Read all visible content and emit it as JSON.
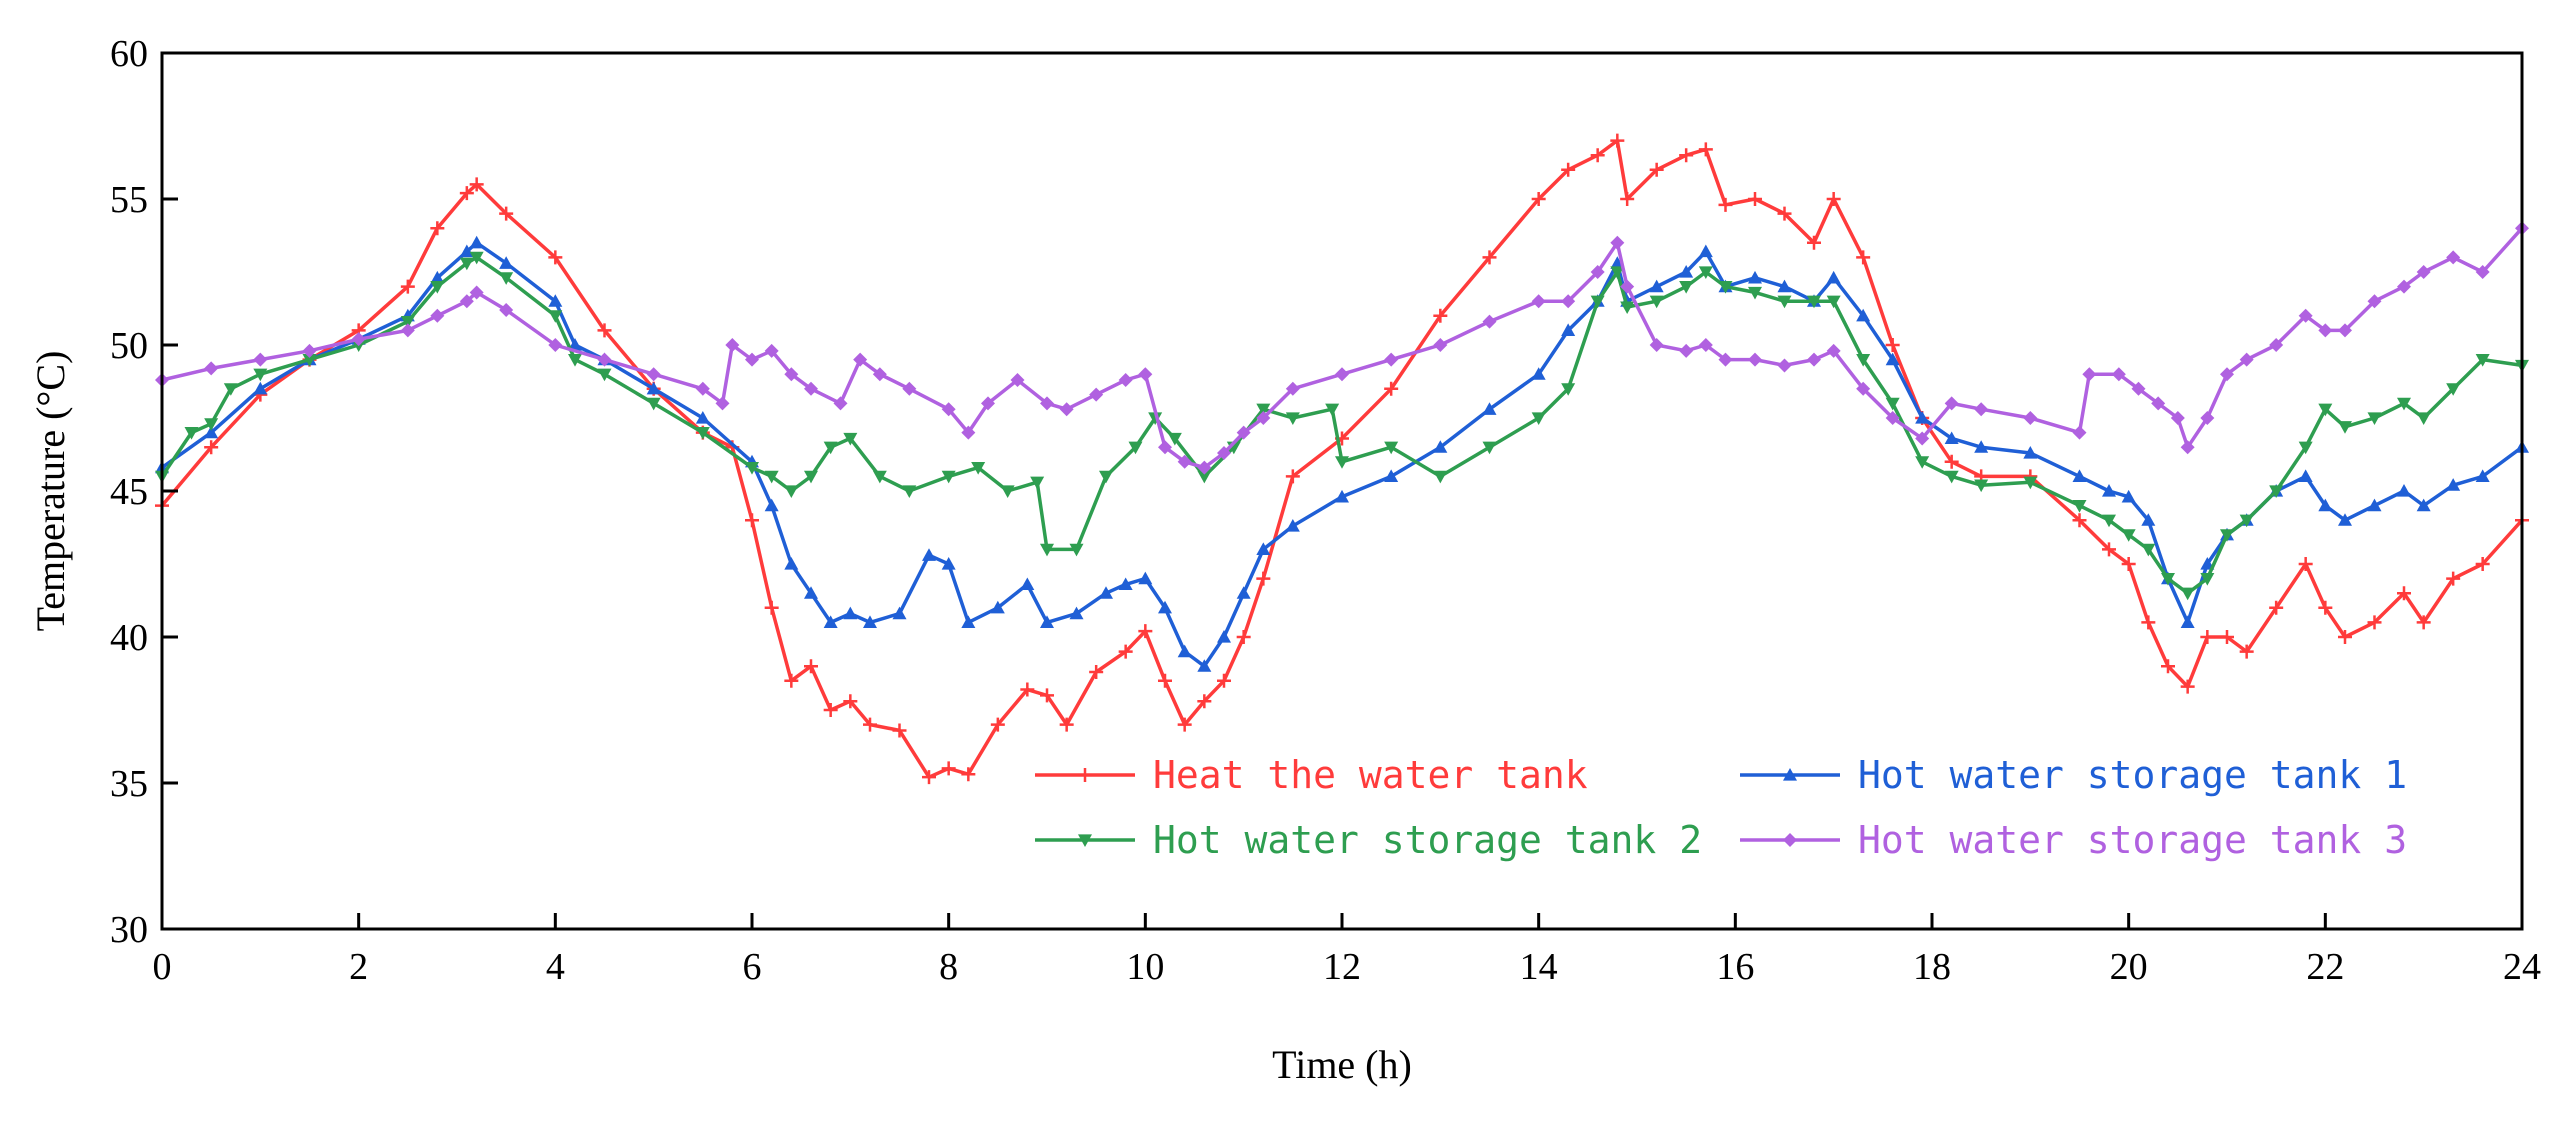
{
  "chart_data": {
    "type": "line",
    "title": "",
    "xlabel": "Time (h)",
    "ylabel": "Temperature (°C)",
    "xlim": [
      0,
      24
    ],
    "ylim": [
      30,
      60
    ],
    "xticks": [
      "0",
      "2",
      "4",
      "6",
      "8",
      "10",
      "12",
      "14",
      "16",
      "18",
      "20",
      "22",
      "24"
    ],
    "yticks": [
      "30",
      "35",
      "40",
      "45",
      "50",
      "55",
      "60"
    ],
    "grid": false,
    "legend_position": "lower-right",
    "series": [
      {
        "name": "Heat the water tank",
        "color": "#ff3b3b",
        "marker": "plus",
        "x": [
          0,
          0.5,
          1,
          1.5,
          2,
          2.5,
          2.8,
          3.1,
          3.2,
          3.5,
          4,
          4.5,
          5,
          5.5,
          5.8,
          6,
          6.2,
          6.4,
          6.6,
          6.8,
          7.0,
          7.2,
          7.5,
          7.8,
          8.0,
          8.2,
          8.5,
          8.8,
          9.0,
          9.2,
          9.5,
          9.8,
          10.0,
          10.2,
          10.4,
          10.6,
          10.8,
          11.0,
          11.2,
          11.5,
          12,
          12.5,
          13,
          13.5,
          14,
          14.3,
          14.6,
          14.8,
          14.9,
          15.2,
          15.5,
          15.7,
          15.9,
          16.2,
          16.5,
          16.8,
          17.0,
          17.3,
          17.6,
          17.9,
          18.2,
          18.5,
          19,
          19.5,
          19.8,
          20,
          20.2,
          20.4,
          20.6,
          20.8,
          21.0,
          21.2,
          21.5,
          21.8,
          22.0,
          22.2,
          22.5,
          22.8,
          23.0,
          23.3,
          23.6,
          24
        ],
        "y": [
          44.5,
          46.5,
          48.3,
          49.5,
          50.5,
          52.0,
          54.0,
          55.2,
          55.5,
          54.5,
          53.0,
          50.5,
          48.5,
          47.0,
          46.5,
          44.0,
          41.0,
          38.5,
          39.0,
          37.5,
          37.8,
          37.0,
          36.8,
          35.2,
          35.5,
          35.3,
          37.0,
          38.2,
          38.0,
          37.0,
          38.8,
          39.5,
          40.2,
          38.5,
          37.0,
          37.8,
          38.5,
          40.0,
          42.0,
          45.5,
          46.8,
          48.5,
          51.0,
          53.0,
          55.0,
          56.0,
          56.5,
          57.0,
          55.0,
          56.0,
          56.5,
          56.7,
          54.8,
          55.0,
          54.5,
          53.5,
          55.0,
          53.0,
          50.0,
          47.5,
          46.0,
          45.5,
          45.5,
          44.0,
          43.0,
          42.5,
          40.5,
          39.0,
          38.3,
          40.0,
          40.0,
          39.5,
          41.0,
          42.5,
          41.0,
          40.0,
          40.5,
          41.5,
          40.5,
          42.0,
          42.5,
          44.0
        ]
      },
      {
        "name": "Hot water storage tank 1",
        "color": "#1f5fd6",
        "marker": "triangle-up",
        "x": [
          0,
          0.5,
          1,
          1.5,
          2,
          2.5,
          2.8,
          3.1,
          3.2,
          3.5,
          4,
          4.2,
          4.5,
          5,
          5.5,
          6,
          6.2,
          6.4,
          6.6,
          6.8,
          7.0,
          7.2,
          7.5,
          7.8,
          8.0,
          8.2,
          8.5,
          8.8,
          9.0,
          9.3,
          9.6,
          9.8,
          10.0,
          10.2,
          10.4,
          10.6,
          10.8,
          11.0,
          11.2,
          11.5,
          12,
          12.5,
          13,
          13.5,
          14,
          14.3,
          14.6,
          14.8,
          14.9,
          15.2,
          15.5,
          15.7,
          15.9,
          16.2,
          16.5,
          16.8,
          17.0,
          17.3,
          17.6,
          17.9,
          18.2,
          18.5,
          19,
          19.5,
          19.8,
          20,
          20.2,
          20.4,
          20.6,
          20.8,
          21.0,
          21.2,
          21.5,
          21.8,
          22.0,
          22.2,
          22.5,
          22.8,
          23.0,
          23.3,
          23.6,
          24
        ],
        "y": [
          45.8,
          47.0,
          48.5,
          49.5,
          50.2,
          51.0,
          52.3,
          53.2,
          53.5,
          52.8,
          51.5,
          50.0,
          49.5,
          48.5,
          47.5,
          46.0,
          44.5,
          42.5,
          41.5,
          40.5,
          40.8,
          40.5,
          40.8,
          42.8,
          42.5,
          40.5,
          41.0,
          41.8,
          40.5,
          40.8,
          41.5,
          41.8,
          42.0,
          41.0,
          39.5,
          39.0,
          40.0,
          41.5,
          43.0,
          43.8,
          44.8,
          45.5,
          46.5,
          47.8,
          49.0,
          50.5,
          51.5,
          52.8,
          51.5,
          52.0,
          52.5,
          53.2,
          52.0,
          52.3,
          52.0,
          51.5,
          52.3,
          51.0,
          49.5,
          47.5,
          46.8,
          46.5,
          46.3,
          45.5,
          45.0,
          44.8,
          44.0,
          42.0,
          40.5,
          42.5,
          43.5,
          44.0,
          45.0,
          45.5,
          44.5,
          44.0,
          44.5,
          45.0,
          44.5,
          45.2,
          45.5,
          46.5
        ]
      },
      {
        "name": "Hot water storage tank 2",
        "color": "#2e9e50",
        "marker": "triangle-down",
        "x": [
          0,
          0.3,
          0.5,
          0.7,
          1,
          1.5,
          2,
          2.5,
          2.8,
          3.1,
          3.2,
          3.5,
          4,
          4.2,
          4.5,
          5,
          5.5,
          6,
          6.2,
          6.4,
          6.6,
          6.8,
          7.0,
          7.3,
          7.6,
          8.0,
          8.3,
          8.6,
          8.9,
          9.0,
          9.3,
          9.6,
          9.9,
          10.1,
          10.3,
          10.6,
          10.9,
          11.2,
          11.5,
          11.9,
          12.0,
          12.5,
          13,
          13.5,
          14,
          14.3,
          14.6,
          14.8,
          14.9,
          15.2,
          15.5,
          15.7,
          15.9,
          16.2,
          16.5,
          16.8,
          17.0,
          17.3,
          17.6,
          17.9,
          18.2,
          18.5,
          19,
          19.5,
          19.8,
          20,
          20.2,
          20.4,
          20.6,
          20.8,
          21.0,
          21.2,
          21.5,
          21.8,
          22.0,
          22.2,
          22.5,
          22.8,
          23.0,
          23.3,
          23.6,
          24
        ],
        "y": [
          45.5,
          47.0,
          47.3,
          48.5,
          49.0,
          49.5,
          50.0,
          50.8,
          52.0,
          52.8,
          53.0,
          52.3,
          51.0,
          49.5,
          49.0,
          48.0,
          47.0,
          45.8,
          45.5,
          45.0,
          45.5,
          46.5,
          46.8,
          45.5,
          45.0,
          45.5,
          45.8,
          45.0,
          45.3,
          43.0,
          43.0,
          45.5,
          46.5,
          47.5,
          46.8,
          45.5,
          46.5,
          47.8,
          47.5,
          47.8,
          46.0,
          46.5,
          45.5,
          46.5,
          47.5,
          48.5,
          51.5,
          52.5,
          51.3,
          51.5,
          52.0,
          52.5,
          52.0,
          51.8,
          51.5,
          51.5,
          51.5,
          49.5,
          48.0,
          46.0,
          45.5,
          45.2,
          45.3,
          44.5,
          44.0,
          43.5,
          43.0,
          42.0,
          41.5,
          42.0,
          43.5,
          44.0,
          45.0,
          46.5,
          47.8,
          47.2,
          47.5,
          48.0,
          47.5,
          48.5,
          49.5,
          49.3
        ]
      },
      {
        "name": "Hot water storage tank 3",
        "color": "#b061e0",
        "marker": "diamond",
        "x": [
          0,
          0.5,
          1,
          1.5,
          2,
          2.5,
          2.8,
          3.1,
          3.2,
          3.5,
          4,
          4.5,
          5,
          5.5,
          5.7,
          5.8,
          6.0,
          6.2,
          6.4,
          6.6,
          6.9,
          7.1,
          7.3,
          7.6,
          8.0,
          8.2,
          8.4,
          8.7,
          9.0,
          9.2,
          9.5,
          9.8,
          10.0,
          10.2,
          10.4,
          10.6,
          10.8,
          11.0,
          11.2,
          11.5,
          12,
          12.5,
          13,
          13.5,
          14,
          14.3,
          14.6,
          14.8,
          14.9,
          15.2,
          15.5,
          15.7,
          15.9,
          16.2,
          16.5,
          16.8,
          17.0,
          17.3,
          17.6,
          17.9,
          18.2,
          18.5,
          19,
          19.5,
          19.6,
          19.9,
          20.1,
          20.3,
          20.5,
          20.6,
          20.8,
          21.0,
          21.2,
          21.5,
          21.8,
          22.0,
          22.2,
          22.5,
          22.8,
          23.0,
          23.3,
          23.6,
          24
        ],
        "y": [
          48.8,
          49.2,
          49.5,
          49.8,
          50.2,
          50.5,
          51.0,
          51.5,
          51.8,
          51.2,
          50.0,
          49.5,
          49.0,
          48.5,
          48.0,
          50.0,
          49.5,
          49.8,
          49.0,
          48.5,
          48.0,
          49.5,
          49.0,
          48.5,
          47.8,
          47.0,
          48.0,
          48.8,
          48.0,
          47.8,
          48.3,
          48.8,
          49.0,
          46.5,
          46.0,
          45.8,
          46.3,
          47.0,
          47.5,
          48.5,
          49.0,
          49.5,
          50.0,
          50.8,
          51.5,
          51.5,
          52.5,
          53.5,
          52.0,
          50.0,
          49.8,
          50.0,
          49.5,
          49.5,
          49.3,
          49.5,
          49.8,
          48.5,
          47.5,
          46.8,
          48.0,
          47.8,
          47.5,
          47.0,
          49.0,
          49.0,
          48.5,
          48.0,
          47.5,
          46.5,
          47.5,
          49.0,
          49.5,
          50.0,
          51.0,
          50.5,
          50.5,
          51.5,
          52.0,
          52.5,
          53.0,
          52.5,
          54.0
        ]
      }
    ]
  }
}
